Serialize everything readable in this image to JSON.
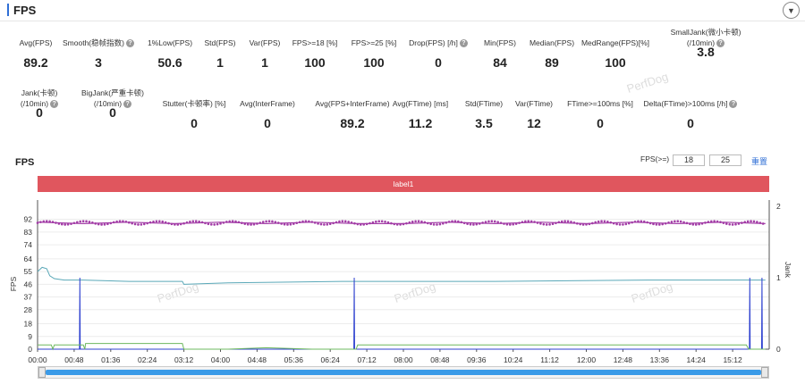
{
  "header": {
    "title": "FPS",
    "collapse_icon": "chevron-down-icon"
  },
  "metrics_row1": [
    {
      "label": "Avg(FPS)",
      "value": "89.2",
      "help": false
    },
    {
      "label": "Smooth(稳帧指数)",
      "value": "3",
      "help": true
    },
    {
      "label": "1%Low(FPS)",
      "value": "50.6",
      "help": false
    },
    {
      "label": "Std(FPS)",
      "value": "1",
      "help": false
    },
    {
      "label": "Var(FPS)",
      "value": "1",
      "help": false
    },
    {
      "label": "FPS>=18 [%]",
      "value": "100",
      "help": false
    },
    {
      "label": "FPS>=25 [%]",
      "value": "100",
      "help": false
    },
    {
      "label": "Drop(FPS) [/h]",
      "value": "0",
      "help": true
    },
    {
      "label": "Min(FPS)",
      "value": "84",
      "help": false
    },
    {
      "label": "Median(FPS)",
      "value": "89",
      "help": false
    },
    {
      "label": "MedRange(FPS)[%]",
      "value": "100",
      "help": false
    },
    {
      "label": "SmallJank(微小卡顿)",
      "label2": "(/10min)",
      "value": "3.8",
      "help": true
    }
  ],
  "metrics_row2": [
    {
      "label": "Jank(卡顿)",
      "label2": "(/10min)",
      "value": "0",
      "help": true
    },
    {
      "label": "BigJank(严重卡顿)",
      "label2": "(/10min)",
      "value": "0",
      "help": true
    },
    {
      "label": "Stutter(卡顿率) [%]",
      "value": "0",
      "help": false
    },
    {
      "label": "Avg(InterFrame)",
      "value": "0",
      "help": false
    },
    {
      "label": "Avg(FPS+InterFrame)",
      "value": "89.2",
      "help": false
    },
    {
      "label": "Avg(FTime) [ms]",
      "value": "11.2",
      "help": false
    },
    {
      "label": "Std(FTime)",
      "value": "3.5",
      "help": false
    },
    {
      "label": "Var(FTime)",
      "value": "12",
      "help": false
    },
    {
      "label": "FTime>=100ms [%]",
      "value": "0",
      "help": false
    },
    {
      "label": "Delta(FTime)>100ms [/h]",
      "value": "0",
      "help": true
    }
  ],
  "watermark": "PerfDog",
  "chart_section": {
    "title": "FPS",
    "threshold_label": "FPS(>=)",
    "threshold1": "18",
    "threshold2": "25",
    "reset_label": "重置",
    "label_bar": "label1"
  },
  "chart_data": {
    "type": "line",
    "ylabel": "FPS",
    "y2label": "Jank",
    "y_ticks": [
      0,
      9,
      18,
      28,
      37,
      46,
      55,
      64,
      74,
      83,
      92
    ],
    "y2_ticks": [
      0,
      1,
      2
    ],
    "x_ticks": [
      "00:00",
      "00:48",
      "01:36",
      "02:24",
      "03:12",
      "04:00",
      "04:48",
      "05:36",
      "06:24",
      "07:12",
      "08:00",
      "08:48",
      "09:36",
      "10:24",
      "11:12",
      "12:00",
      "12:48",
      "13:36",
      "14:24",
      "15:12"
    ],
    "x_range_seconds": [
      0,
      960
    ],
    "series": [
      {
        "color": "#a23ca6",
        "points": [
          [
            0,
            90
          ],
          [
            60,
            89
          ],
          [
            120,
            90
          ],
          [
            180,
            89
          ],
          [
            240,
            90
          ],
          [
            300,
            89
          ],
          [
            360,
            90
          ],
          [
            420,
            89
          ],
          [
            480,
            89
          ],
          [
            540,
            90
          ],
          [
            600,
            89
          ],
          [
            660,
            90
          ],
          [
            720,
            89
          ],
          [
            780,
            90
          ],
          [
            840,
            89
          ],
          [
            900,
            90
          ],
          [
            955,
            89
          ]
        ]
      },
      {
        "color": "#5aa8b8",
        "points": [
          [
            0,
            55
          ],
          [
            6,
            58
          ],
          [
            12,
            57
          ],
          [
            16,
            52
          ],
          [
            22,
            50
          ],
          [
            35,
            49
          ],
          [
            60,
            49
          ],
          [
            120,
            48
          ],
          [
            190,
            48
          ],
          [
            192,
            46
          ],
          [
            250,
            47
          ],
          [
            400,
            48
          ],
          [
            600,
            48
          ],
          [
            800,
            49
          ],
          [
            955,
            49
          ]
        ]
      },
      {
        "color": "#2c3fcf",
        "points": [
          [
            0,
            0
          ],
          [
            55,
            0
          ],
          [
            55.5,
            1
          ],
          [
            56,
            0
          ],
          [
            415,
            0
          ],
          [
            415.5,
            1
          ],
          [
            416,
            0
          ],
          [
            934,
            0
          ],
          [
            934.5,
            1
          ],
          [
            935,
            0
          ],
          [
            950,
            0
          ],
          [
            950.5,
            1
          ],
          [
            951,
            0
          ],
          [
            955,
            0
          ]
        ]
      },
      {
        "color": "#6db85f",
        "points": [
          [
            0,
            3
          ],
          [
            18,
            3
          ],
          [
            20,
            0
          ],
          [
            22,
            3
          ],
          [
            60,
            3
          ],
          [
            62,
            0
          ],
          [
            63,
            4
          ],
          [
            190,
            4
          ],
          [
            192,
            0
          ],
          [
            250,
            0
          ],
          [
            300,
            1
          ],
          [
            360,
            0
          ],
          [
            400,
            0
          ],
          [
            418,
            0
          ],
          [
            420,
            3
          ],
          [
            930,
            3
          ],
          [
            933,
            0
          ],
          [
            955,
            0
          ]
        ]
      }
    ],
    "y_range": [
      0,
      100
    ],
    "y2_range": [
      0,
      2
    ]
  }
}
